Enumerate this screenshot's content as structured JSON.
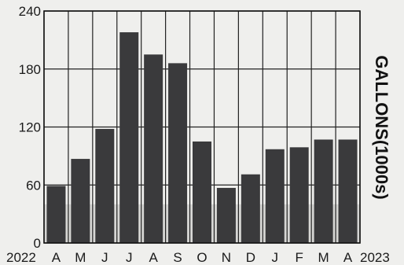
{
  "chart_data": {
    "type": "bar",
    "title": "",
    "xlabel": "",
    "ylabel": "GALLONS(1000s)",
    "start_label": "2022",
    "end_label": "2023",
    "categories": [
      "A",
      "M",
      "J",
      "J",
      "A",
      "S",
      "O",
      "N",
      "D",
      "J",
      "F",
      "M",
      "A"
    ],
    "values": [
      59,
      87,
      118,
      218,
      195,
      186,
      105,
      57,
      71,
      97,
      99,
      107,
      107
    ],
    "ylim": [
      0,
      240
    ],
    "yticks": [
      0,
      60,
      120,
      180,
      240
    ],
    "grid": true,
    "legend": "none",
    "colors": {
      "bar": "#3a3a3c",
      "grid": "#222222",
      "shaded_band": "#d6d6d4",
      "background": "#efefed"
    },
    "shaded_band_upper": 40
  }
}
